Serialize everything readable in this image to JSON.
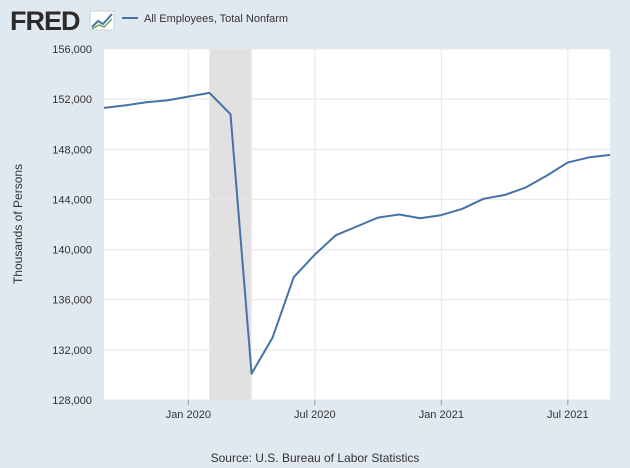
{
  "header": {
    "logo_text": "FRED",
    "logo_icon": "trend-line-icon",
    "legend_label": "All Employees, Total Nonfarm"
  },
  "footer": {
    "source": "Source: U.S. Bureau of Labor Statistics"
  },
  "colors": {
    "background": "#e1e9f0",
    "plot_background": "#ffffff",
    "line": "#4572a7",
    "recession_shade": "#e1e1e1",
    "grid": "#e6e6e6",
    "logo": "#2b2b2b"
  },
  "chart_data": {
    "type": "line",
    "title": "",
    "xlabel": "",
    "ylabel": "Thousands of Persons",
    "ylim": [
      128000,
      156000
    ],
    "y_ticks": [
      128000,
      132000,
      136000,
      140000,
      144000,
      148000,
      152000,
      156000
    ],
    "y_tick_labels": [
      "128,000",
      "132,000",
      "136,000",
      "140,000",
      "144,000",
      "148,000",
      "152,000",
      "156,000"
    ],
    "xlim": [
      "2019-09",
      "2021-09"
    ],
    "x_ticks": [
      {
        "date": "2020-01",
        "label": "Jan 2020"
      },
      {
        "date": "2020-07",
        "label": "Jul 2020"
      },
      {
        "date": "2021-01",
        "label": "Jan 2021"
      },
      {
        "date": "2021-07",
        "label": "Jul 2021"
      }
    ],
    "recession": {
      "start": "2020-02",
      "end": "2020-04"
    },
    "grid": true,
    "series": [
      {
        "name": "All Employees, Total Nonfarm",
        "x": [
          "2019-09",
          "2019-10",
          "2019-11",
          "2019-12",
          "2020-01",
          "2020-02",
          "2020-03",
          "2020-04",
          "2020-05",
          "2020-06",
          "2020-07",
          "2020-08",
          "2020-09",
          "2020-10",
          "2020-11",
          "2020-12",
          "2021-01",
          "2021-02",
          "2021-03",
          "2021-04",
          "2021-05",
          "2021-06",
          "2021-07",
          "2021-08",
          "2021-09"
        ],
        "values": [
          151300,
          151500,
          151750,
          151900,
          152200,
          152500,
          150800,
          130100,
          133000,
          137800,
          139600,
          141150,
          141850,
          142550,
          142800,
          142500,
          142750,
          143250,
          144050,
          144350,
          144950,
          145900,
          146950,
          147350,
          147550
        ]
      }
    ]
  }
}
